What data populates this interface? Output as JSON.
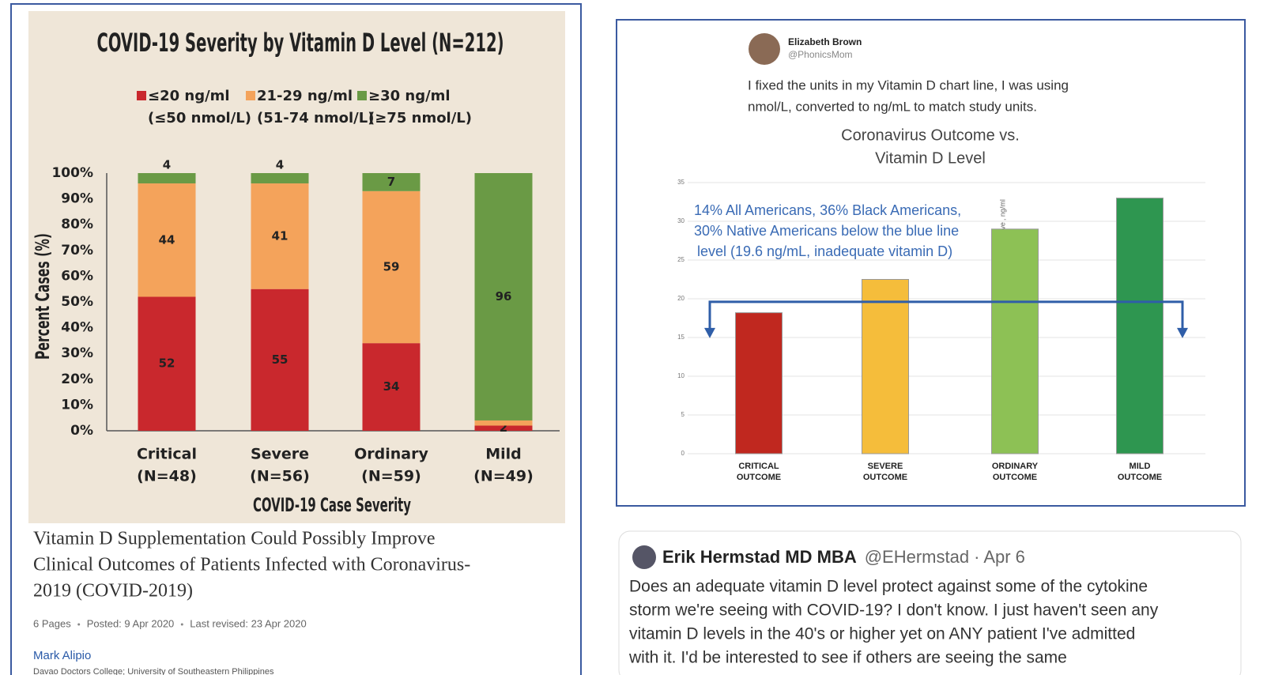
{
  "chart_data": [
    {
      "type": "stacked_bar",
      "title": "COVID-19 Severity by Vitamin D Level (N=212)",
      "x_label": "COVID-19 Case Severity",
      "y_label": "Percent Cases (%)",
      "categories": [
        [
          "Critical",
          "(N=48)"
        ],
        [
          "Severe",
          "(N=56)"
        ],
        [
          "Ordinary",
          "(N=59)"
        ],
        [
          "Mild",
          "(N=49)"
        ]
      ],
      "series": [
        {
          "name": "≤20 ng/ml",
          "name_note": "(≤50 nmol/L)",
          "color": "#c9282d",
          "values": [
            52,
            55,
            34,
            2
          ]
        },
        {
          "name": "21-29 ng/ml",
          "name_note": "(51-74 nmol/L)",
          "color": "#f4a35b",
          "values": [
            44,
            41,
            59,
            2
          ],
          "value_labels": [
            "44",
            "41",
            "59",
            null
          ]
        },
        {
          "name": "≥30 ng/ml",
          "name_note": "(≥75 nmol/L)",
          "color": "#6a9a45",
          "values": [
            4,
            4,
            7,
            96
          ]
        }
      ],
      "ylim": [
        0,
        100
      ],
      "yticks": [
        {
          "value": 0,
          "label": "0%"
        },
        {
          "value": 10,
          "label": "10%"
        },
        {
          "value": 20,
          "label": "20%"
        },
        {
          "value": 30,
          "label": "30%"
        },
        {
          "value": 40,
          "label": "40%"
        },
        {
          "value": 50,
          "label": "50%"
        },
        {
          "value": 60,
          "label": "60%"
        },
        {
          "value": 70,
          "label": "70%"
        },
        {
          "value": 80,
          "label": "80%"
        },
        {
          "value": 90,
          "label": "90%"
        },
        {
          "value": 100,
          "label": "100%"
        }
      ]
    },
    {
      "type": "bar",
      "title": [
        "Coronavirus Outcome vs.",
        "Vitamin D Level"
      ],
      "y_label": "Vitamin D Level, ng/ml",
      "categories": [
        [
          "CRITICAL",
          "OUTCOME"
        ],
        [
          "SEVERE",
          "OUTCOME"
        ],
        [
          "ORDINARY",
          "OUTCOME"
        ],
        [
          "MILD",
          "OUTCOME"
        ]
      ],
      "values": [
        18.2,
        22.5,
        29,
        33
      ],
      "colors": [
        "#c0281f",
        "#f5bd3b",
        "#8dc155",
        "#2e9650"
      ],
      "reference_line": 19.6,
      "annotation": [
        "14% All Americans, 36% Black Americans,",
        "30% Native Americans below the blue line",
        "level  (19.6 ng/mL, inadequate vitamin D)"
      ],
      "ylim": [
        0,
        35
      ],
      "yticks": [
        0,
        5,
        10,
        15,
        20,
        25,
        30,
        35
      ]
    }
  ],
  "paper": {
    "title": [
      "Vitamin D Supplementation Could Possibly Improve",
      "Clinical Outcomes of Patients Infected with Coronavirus-",
      "2019 (COVID-2019)"
    ],
    "meta": [
      "6 Pages",
      "Posted: 9 Apr 2020",
      "Last revised: 23 Apr 2020"
    ],
    "author": "Mark Alipio",
    "affiliation": "Davao Doctors College; University of Southeastern Philippines"
  },
  "tweet_1": {
    "name": "Elizabeth Brown",
    "handle": "@PhonicsMom",
    "text": [
      "I fixed the units in my Vitamin D chart line, I was using",
      "nmol/L, converted to ng/mL to match study units."
    ]
  },
  "tweet_2": {
    "name": "Erik Hermstad MD MBA",
    "handle": "@EHermstad",
    "date": "· Apr 6",
    "text": [
      "Does an adequate vitamin D level protect against some of the cytokine",
      "storm we're seeing with COVID-19?  I don't know.  I just haven't seen any",
      "vitamin D levels in the 40's or higher yet on ANY patient I've admitted",
      "with it.  I'd be interested to see if others are seeing the same"
    ]
  }
}
